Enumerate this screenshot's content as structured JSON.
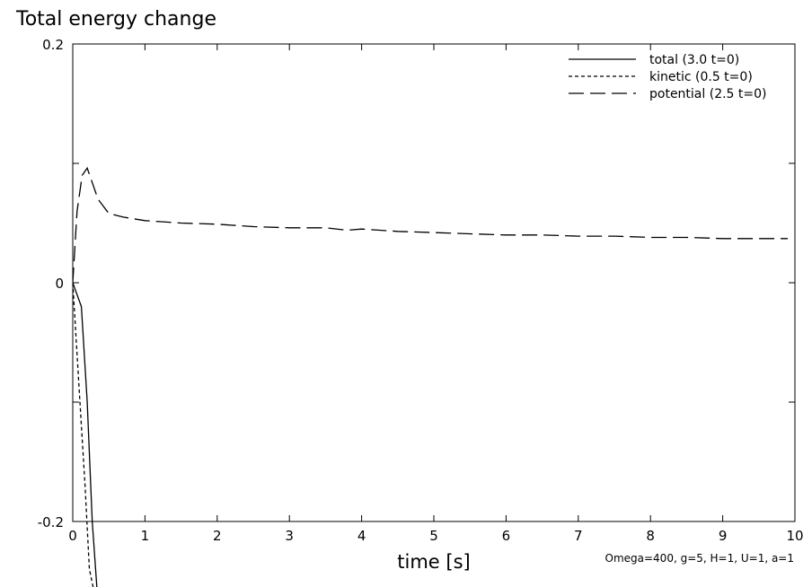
{
  "chart_data": {
    "type": "line",
    "title": "Total energy change",
    "xlabel": "time [s]",
    "ylabel": "",
    "xlim": [
      0,
      10
    ],
    "ylim": [
      -0.2,
      0.2
    ],
    "x_ticks": [
      "0",
      "1",
      "2",
      "3",
      "4",
      "5",
      "6",
      "7",
      "8",
      "9",
      "10"
    ],
    "y_ticks": [
      "0.2",
      "0",
      "-0.2"
    ],
    "grid": false,
    "legend_position": "top-right",
    "annotation": "Omega=400, g=5, H=1, U=1, a=1",
    "series": [
      {
        "name": "total (3.0 t=0)",
        "style": "solid",
        "x": [
          0,
          0.12,
          0.2,
          0.27,
          0.34
        ],
        "y": [
          0,
          -0.02,
          -0.1,
          -0.2,
          -0.26
        ]
      },
      {
        "name": "kinetic (0.5 t=0)",
        "style": "dotted",
        "x": [
          0,
          0.1,
          0.17,
          0.23,
          0.3
        ],
        "y": [
          0,
          -0.1,
          -0.17,
          -0.24,
          -0.26
        ]
      },
      {
        "name": "potential (2.5 t=0)",
        "style": "dashed",
        "x": [
          0,
          0.06,
          0.13,
          0.2,
          0.35,
          0.5,
          0.7,
          1.0,
          1.5,
          2.0,
          2.5,
          3.0,
          3.5,
          3.8,
          4.0,
          4.5,
          5.0,
          5.5,
          6.0,
          6.5,
          7.0,
          7.5,
          8.0,
          8.5,
          9.0,
          9.5,
          9.9
        ],
        "y": [
          0,
          0.06,
          0.09,
          0.096,
          0.07,
          0.058,
          0.055,
          0.052,
          0.05,
          0.049,
          0.047,
          0.046,
          0.046,
          0.044,
          0.045,
          0.043,
          0.042,
          0.041,
          0.04,
          0.04,
          0.039,
          0.039,
          0.038,
          0.038,
          0.037,
          0.037,
          0.037
        ]
      }
    ]
  }
}
